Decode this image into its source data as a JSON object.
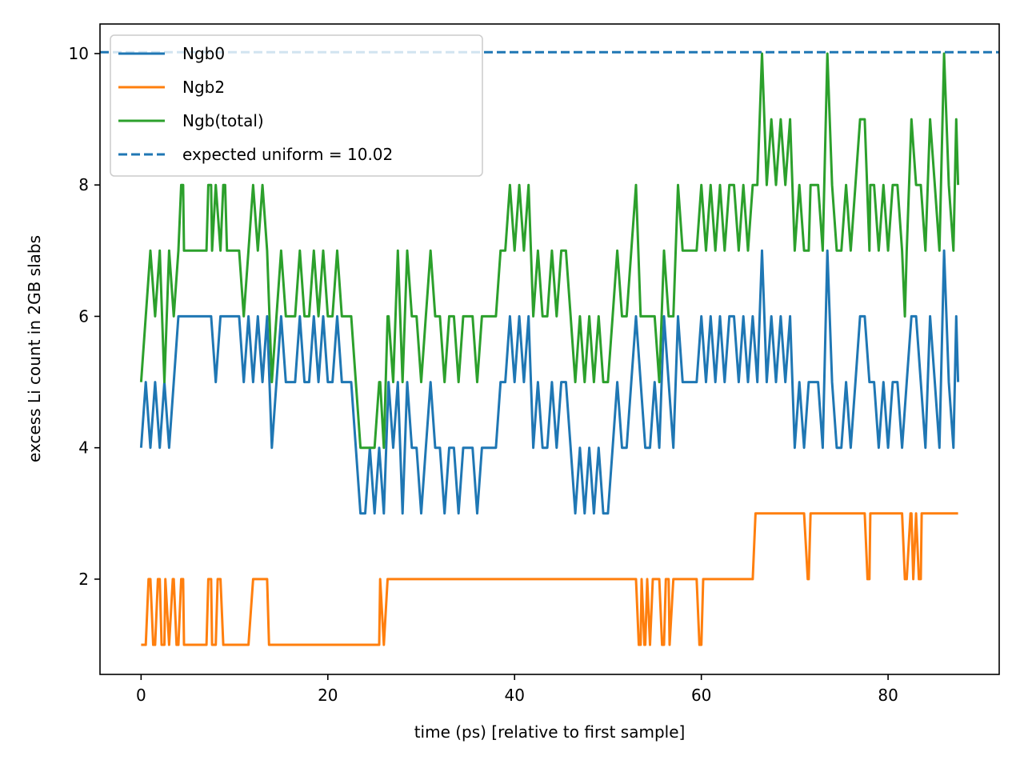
{
  "chart_data": {
    "type": "line",
    "title": "",
    "xlabel": "time (ps) [relative to first sample]",
    "ylabel": "excess Li count in 2GB slabs",
    "xlim": [
      -4.4,
      91.9
    ],
    "ylim": [
      0.55,
      10.45
    ],
    "xticks": [
      0,
      20,
      40,
      60,
      80
    ],
    "yticks": [
      2,
      4,
      6,
      8,
      10
    ],
    "xtick_labels": [
      "0",
      "20",
      "40",
      "60",
      "80"
    ],
    "ytick_labels": [
      "2",
      "4",
      "6",
      "8",
      "10"
    ],
    "grid": false,
    "legend_position": "top-left",
    "sample_interval_ps": 0.5,
    "series": [
      {
        "name": "Ngb0",
        "color": "#1f77b4",
        "style": "solid",
        "step_changes": [
          [
            0,
            4
          ],
          [
            0.5,
            5
          ],
          [
            1,
            4
          ],
          [
            1.5,
            5
          ],
          [
            2,
            4
          ],
          [
            2.5,
            5
          ],
          [
            3,
            4
          ],
          [
            3.5,
            5
          ],
          [
            4,
            6
          ],
          [
            7.5,
            6
          ],
          [
            8,
            5
          ],
          [
            8.5,
            6
          ],
          [
            11,
            5
          ],
          [
            11.5,
            6
          ],
          [
            12,
            5
          ],
          [
            12.5,
            6
          ],
          [
            13,
            5
          ],
          [
            13.5,
            6
          ],
          [
            14,
            4
          ],
          [
            14.5,
            5
          ],
          [
            15,
            6
          ],
          [
            15.5,
            5
          ],
          [
            17,
            6
          ],
          [
            17.5,
            5
          ],
          [
            18.5,
            6
          ],
          [
            19,
            5
          ],
          [
            19.5,
            6
          ],
          [
            20,
            5
          ],
          [
            21,
            6
          ],
          [
            21.5,
            5
          ],
          [
            23,
            4
          ],
          [
            23.5,
            3
          ],
          [
            24.5,
            4
          ],
          [
            25,
            3
          ],
          [
            25.5,
            4
          ],
          [
            26,
            3
          ],
          [
            26.5,
            5
          ],
          [
            27,
            4
          ],
          [
            27.5,
            5
          ],
          [
            28,
            3
          ],
          [
            28.5,
            5
          ],
          [
            29,
            4
          ],
          [
            30,
            3
          ],
          [
            30.5,
            4
          ],
          [
            31,
            5
          ],
          [
            31.5,
            4
          ],
          [
            32.5,
            3
          ],
          [
            33,
            4
          ],
          [
            34,
            3
          ],
          [
            34.5,
            4
          ],
          [
            35,
            4
          ],
          [
            36,
            3
          ],
          [
            36.5,
            4
          ],
          [
            38,
            4
          ],
          [
            38.5,
            5
          ],
          [
            39.5,
            6
          ],
          [
            40,
            5
          ],
          [
            40.5,
            6
          ],
          [
            41,
            5
          ],
          [
            41.5,
            6
          ],
          [
            42,
            4
          ],
          [
            42.5,
            5
          ],
          [
            43,
            4
          ],
          [
            44,
            5
          ],
          [
            44.5,
            4
          ],
          [
            45,
            5
          ],
          [
            46,
            4
          ],
          [
            46.5,
            3
          ],
          [
            47,
            4
          ],
          [
            47.5,
            3
          ],
          [
            48,
            4
          ],
          [
            48.5,
            3
          ],
          [
            49,
            4
          ],
          [
            49.5,
            3
          ],
          [
            50.5,
            4
          ],
          [
            51,
            5
          ],
          [
            51.5,
            4
          ],
          [
            52.5,
            5
          ],
          [
            53,
            6
          ],
          [
            53.5,
            5
          ],
          [
            54,
            4
          ],
          [
            55,
            5
          ],
          [
            55.5,
            4
          ],
          [
            56,
            6
          ],
          [
            56.5,
            5
          ],
          [
            57,
            4
          ],
          [
            57.5,
            6
          ],
          [
            58,
            5
          ],
          [
            60,
            6
          ],
          [
            60.5,
            5
          ],
          [
            61,
            6
          ],
          [
            61.5,
            5
          ],
          [
            62,
            6
          ],
          [
            62.5,
            5
          ],
          [
            63,
            6
          ],
          [
            64,
            5
          ],
          [
            64.5,
            6
          ],
          [
            65,
            5
          ],
          [
            65.5,
            6
          ],
          [
            66,
            5
          ],
          [
            66.5,
            7
          ],
          [
            67,
            5
          ],
          [
            67.5,
            6
          ],
          [
            68,
            5
          ],
          [
            68.5,
            6
          ],
          [
            69,
            5
          ],
          [
            69.5,
            6
          ],
          [
            70,
            4
          ],
          [
            70.5,
            5
          ],
          [
            71,
            4
          ],
          [
            71.5,
            5
          ],
          [
            73,
            4
          ],
          [
            73.5,
            7
          ],
          [
            74,
            5
          ],
          [
            74.5,
            4
          ],
          [
            75.5,
            5
          ],
          [
            76,
            4
          ],
          [
            76.5,
            5
          ],
          [
            77,
            6
          ],
          [
            78,
            5
          ],
          [
            79,
            4
          ],
          [
            79.5,
            5
          ],
          [
            80,
            4
          ],
          [
            80.5,
            5
          ],
          [
            81.5,
            4
          ],
          [
            82,
            5
          ],
          [
            82.5,
            6
          ],
          [
            83.5,
            5
          ],
          [
            84,
            4
          ],
          [
            84.5,
            6
          ],
          [
            85,
            5
          ],
          [
            85.5,
            4
          ],
          [
            86,
            7
          ],
          [
            86.5,
            5
          ],
          [
            87,
            4
          ],
          [
            87.3,
            6
          ],
          [
            87.5,
            5
          ]
        ]
      },
      {
        "name": "Ngb2",
        "color": "#ff7f0e",
        "style": "solid",
        "step_changes": [
          [
            0,
            1
          ],
          [
            0.8,
            2
          ],
          [
            1.3,
            1
          ],
          [
            1.8,
            2
          ],
          [
            2.2,
            1
          ],
          [
            2.6,
            2
          ],
          [
            3,
            1
          ],
          [
            3.4,
            2
          ],
          [
            3.8,
            1
          ],
          [
            4.3,
            2
          ],
          [
            4.6,
            1
          ],
          [
            7.2,
            2
          ],
          [
            7.6,
            1
          ],
          [
            8.2,
            2
          ],
          [
            8.8,
            1
          ],
          [
            12,
            2
          ],
          [
            13.7,
            1
          ],
          [
            25.6,
            2
          ],
          [
            26,
            1
          ],
          [
            26.4,
            2
          ],
          [
            53.3,
            1
          ],
          [
            53.6,
            2
          ],
          [
            53.9,
            1
          ],
          [
            54.2,
            2
          ],
          [
            54.5,
            1
          ],
          [
            54.8,
            2
          ],
          [
            55.8,
            1
          ],
          [
            56.2,
            2
          ],
          [
            56.6,
            1
          ],
          [
            57,
            2
          ],
          [
            59.8,
            1
          ],
          [
            60.2,
            2
          ],
          [
            65.8,
            3
          ],
          [
            71.4,
            2
          ],
          [
            71.7,
            3
          ],
          [
            77.8,
            2
          ],
          [
            78.1,
            3
          ],
          [
            81.8,
            2
          ],
          [
            82.4,
            3
          ],
          [
            82.7,
            2
          ],
          [
            83,
            3
          ],
          [
            83.3,
            2
          ],
          [
            83.6,
            3
          ]
        ]
      },
      {
        "name": "Ngb(total)",
        "color": "#2ca02c",
        "style": "solid",
        "step_changes": [
          [
            0,
            5
          ],
          [
            0.5,
            6
          ],
          [
            1,
            7
          ],
          [
            1.5,
            6
          ],
          [
            2,
            7
          ],
          [
            2.5,
            5
          ],
          [
            3,
            7
          ],
          [
            3.5,
            6
          ],
          [
            4,
            7
          ],
          [
            4.3,
            8
          ],
          [
            4.6,
            7
          ],
          [
            7.2,
            8
          ],
          [
            7.6,
            7
          ],
          [
            8,
            8
          ],
          [
            8.5,
            7
          ],
          [
            8.8,
            8
          ],
          [
            9.2,
            7
          ],
          [
            11,
            6
          ],
          [
            11.5,
            7
          ],
          [
            12,
            8
          ],
          [
            12.5,
            7
          ],
          [
            13,
            8
          ],
          [
            13.5,
            7
          ],
          [
            14,
            5
          ],
          [
            14.5,
            6
          ],
          [
            15,
            7
          ],
          [
            15.5,
            6
          ],
          [
            17,
            7
          ],
          [
            17.5,
            6
          ],
          [
            18.5,
            7
          ],
          [
            19,
            6
          ],
          [
            19.5,
            7
          ],
          [
            20,
            6
          ],
          [
            21,
            7
          ],
          [
            21.5,
            6
          ],
          [
            23,
            5
          ],
          [
            23.5,
            4
          ],
          [
            25.5,
            5
          ],
          [
            25.6,
            5
          ],
          [
            26,
            4
          ],
          [
            26.4,
            6
          ],
          [
            27,
            5
          ],
          [
            27.5,
            7
          ],
          [
            28,
            5
          ],
          [
            28.5,
            7
          ],
          [
            29,
            6
          ],
          [
            30,
            5
          ],
          [
            30.5,
            6
          ],
          [
            31,
            7
          ],
          [
            31.5,
            6
          ],
          [
            32.5,
            5
          ],
          [
            33,
            6
          ],
          [
            34,
            5
          ],
          [
            34.5,
            6
          ],
          [
            36,
            5
          ],
          [
            36.5,
            6
          ],
          [
            38,
            6
          ],
          [
            38.5,
            7
          ],
          [
            39.5,
            8
          ],
          [
            40,
            7
          ],
          [
            40.5,
            8
          ],
          [
            41,
            7
          ],
          [
            41.5,
            8
          ],
          [
            42,
            6
          ],
          [
            42.5,
            7
          ],
          [
            43,
            6
          ],
          [
            44,
            7
          ],
          [
            44.5,
            6
          ],
          [
            45,
            7
          ],
          [
            46,
            6
          ],
          [
            46.5,
            5
          ],
          [
            47,
            6
          ],
          [
            47.5,
            5
          ],
          [
            48,
            6
          ],
          [
            48.5,
            5
          ],
          [
            49,
            6
          ],
          [
            49.5,
            5
          ],
          [
            50.5,
            6
          ],
          [
            51,
            7
          ],
          [
            51.5,
            6
          ],
          [
            52.5,
            7
          ],
          [
            53,
            8
          ],
          [
            53.5,
            6
          ],
          [
            54,
            6
          ],
          [
            55,
            6
          ],
          [
            55.5,
            5
          ],
          [
            56,
            7
          ],
          [
            56.5,
            6
          ],
          [
            57,
            6
          ],
          [
            57.5,
            8
          ],
          [
            58,
            7
          ],
          [
            60,
            8
          ],
          [
            60.5,
            7
          ],
          [
            61,
            8
          ],
          [
            61.5,
            7
          ],
          [
            62,
            8
          ],
          [
            62.5,
            7
          ],
          [
            63,
            8
          ],
          [
            64,
            7
          ],
          [
            64.5,
            8
          ],
          [
            65,
            7
          ],
          [
            65.5,
            8
          ],
          [
            66,
            8
          ],
          [
            66.5,
            10
          ],
          [
            67,
            8
          ],
          [
            67.5,
            9
          ],
          [
            68,
            8
          ],
          [
            68.5,
            9
          ],
          [
            69,
            8
          ],
          [
            69.5,
            9
          ],
          [
            70,
            7
          ],
          [
            70.5,
            8
          ],
          [
            71,
            7
          ],
          [
            71.5,
            7
          ],
          [
            71.7,
            8
          ],
          [
            73,
            7
          ],
          [
            73.5,
            10
          ],
          [
            74,
            8
          ],
          [
            74.5,
            7
          ],
          [
            75.5,
            8
          ],
          [
            76,
            7
          ],
          [
            76.5,
            8
          ],
          [
            77,
            9
          ],
          [
            78,
            7
          ],
          [
            78.1,
            8
          ],
          [
            79,
            7
          ],
          [
            79.5,
            8
          ],
          [
            80,
            7
          ],
          [
            80.5,
            8
          ],
          [
            81.5,
            7
          ],
          [
            81.8,
            6
          ],
          [
            82,
            7
          ],
          [
            82.5,
            9
          ],
          [
            83,
            8
          ],
          [
            83.5,
            8
          ],
          [
            84,
            7
          ],
          [
            84.5,
            9
          ],
          [
            85,
            8
          ],
          [
            85.5,
            7
          ],
          [
            86,
            10
          ],
          [
            86.5,
            8
          ],
          [
            87,
            7
          ],
          [
            87.3,
            9
          ],
          [
            87.5,
            8
          ]
        ]
      },
      {
        "name": "expected uniform = 10.02",
        "color": "#1f77b4",
        "style": "dashed",
        "constant": 10.02
      }
    ]
  }
}
